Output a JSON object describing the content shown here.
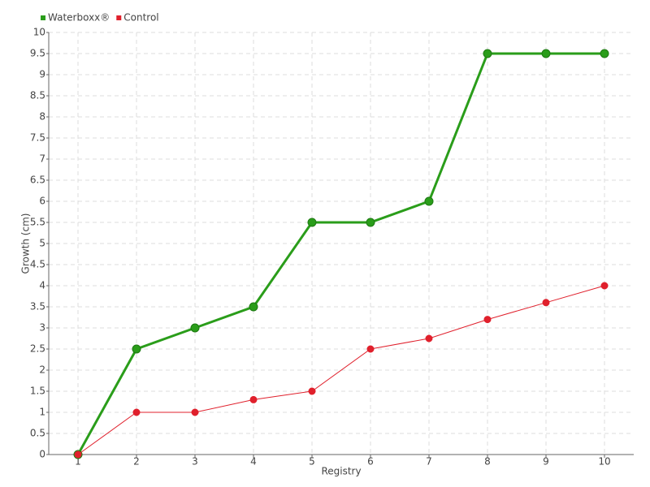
{
  "chart_data": {
    "type": "line",
    "x_label": "Registry",
    "y_label": "Growth (cm)",
    "categories": [
      "1",
      "2",
      "3",
      "4",
      "5",
      "6",
      "7",
      "8",
      "9",
      "10"
    ],
    "series": [
      {
        "name": "Waterboxx®",
        "color": "#2a9d1a",
        "values": [
          0,
          2.5,
          3,
          3.5,
          5.5,
          5.5,
          6,
          9.5,
          9.5,
          9.5
        ]
      },
      {
        "name": "Control",
        "color": "#e0202c",
        "values": [
          0,
          1,
          1,
          1.3,
          1.5,
          2.5,
          2.75,
          3.2,
          3.6,
          4
        ]
      }
    ],
    "ylim": [
      0,
      10
    ],
    "yticks": [
      0,
      0.5,
      1,
      1.5,
      2,
      2.5,
      3,
      3.5,
      4,
      4.5,
      5,
      5.5,
      6,
      6.5,
      7,
      7.5,
      8,
      8.5,
      9,
      9.5,
      10
    ],
    "grid": true,
    "legend": "top-left"
  }
}
